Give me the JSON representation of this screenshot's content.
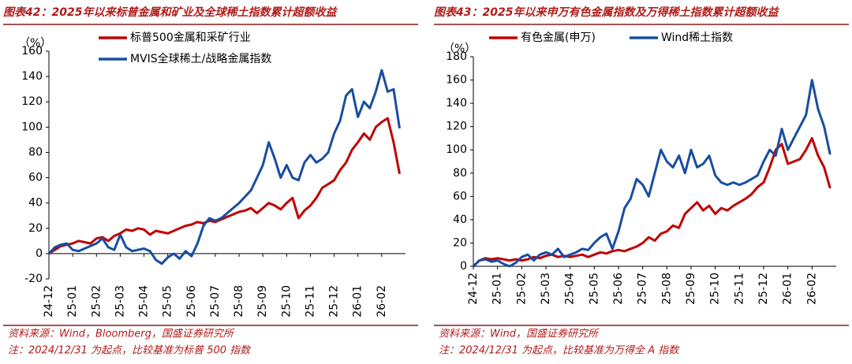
{
  "chart_data": [
    {
      "type": "line",
      "title": "图表42：2025年以来标普金属和矿业及全球稀土指数累计超额收益",
      "y_label": "（%）",
      "source": "资料来源：Wind，Bloomberg，国盛证券研究所",
      "note": "注：2024/12/31 为起点，比较基准为标普 500 指数",
      "categories": [
        "24-12",
        null,
        null,
        null,
        "25-01",
        null,
        null,
        null,
        "25-02",
        null,
        null,
        null,
        "25-03",
        null,
        null,
        null,
        "25-04",
        null,
        null,
        null,
        "25-05",
        null,
        null,
        null,
        "25-06",
        null,
        null,
        null,
        "25-07",
        null,
        null,
        null,
        "25-08",
        null,
        null,
        null,
        "25-09",
        null,
        null,
        null,
        "25-10",
        null,
        null,
        null,
        "25-11",
        null,
        null,
        null,
        "25-12",
        null,
        null,
        null,
        "26-01",
        null,
        null,
        null,
        "26-02",
        null,
        null,
        null
      ],
      "ylim": [
        -20,
        160
      ],
      "yticks": [
        -20,
        0,
        20,
        40,
        60,
        80,
        100,
        120,
        140,
        160
      ],
      "series": [
        {
          "name": "标普500金属和采矿行业",
          "color": "#c00000",
          "values": [
            0,
            3,
            6,
            7,
            8,
            10,
            9,
            8,
            12,
            13,
            10,
            14,
            16,
            19,
            18,
            20,
            19,
            15,
            18,
            17,
            16,
            18,
            20,
            22,
            23,
            25,
            24,
            26,
            25,
            27,
            29,
            31,
            33,
            34,
            36,
            32,
            36,
            40,
            38,
            35,
            40,
            44,
            28,
            34,
            38,
            44,
            52,
            55,
            58,
            66,
            72,
            82,
            88,
            95,
            90,
            100,
            104,
            107,
            88,
            63
          ]
        },
        {
          "name": "MVIS全球稀土/战略金属指数",
          "color": "#1a4da1",
          "values": [
            0,
            5,
            7,
            8,
            3,
            2,
            4,
            6,
            8,
            12,
            5,
            3,
            15,
            5,
            2,
            3,
            4,
            2,
            -5,
            -8,
            -3,
            0,
            -4,
            2,
            -2,
            8,
            22,
            28,
            26,
            28,
            32,
            36,
            40,
            45,
            50,
            60,
            70,
            88,
            75,
            60,
            70,
            60,
            58,
            72,
            78,
            72,
            75,
            80,
            95,
            105,
            125,
            130,
            108,
            120,
            115,
            128,
            145,
            128,
            130,
            99
          ]
        }
      ]
    },
    {
      "type": "line",
      "title": "图表43：2025年以来申万有色金属指数及万得稀土指数累计超额收益",
      "y_label": "（%）",
      "source": "资料来源：Wind，国盛证券研究所",
      "note": "注：2024/12/31 为起点，比较基准为万得全 A 指数",
      "categories": [
        "24-12",
        null,
        null,
        null,
        "25-01",
        null,
        null,
        null,
        "25-02",
        null,
        null,
        null,
        "25-03",
        null,
        null,
        null,
        "25-04",
        null,
        null,
        null,
        "25-05",
        null,
        null,
        null,
        "25-06",
        null,
        null,
        null,
        "25-07",
        null,
        null,
        null,
        "25-08",
        null,
        null,
        null,
        "25-09",
        null,
        null,
        null,
        "25-10",
        null,
        null,
        null,
        "25-11",
        null,
        null,
        null,
        "25-12",
        null,
        null,
        null,
        "26-01",
        null,
        null,
        null,
        "26-02",
        null,
        null,
        null
      ],
      "ylim": [
        0,
        180
      ],
      "yticks": [
        0,
        20,
        40,
        60,
        80,
        100,
        120,
        140,
        160,
        180
      ],
      "series": [
        {
          "name": "有色金属(申万)",
          "color": "#c00000",
          "values": [
            0,
            5,
            7,
            6,
            7,
            6,
            5,
            6,
            5,
            6,
            8,
            7,
            9,
            10,
            8,
            9,
            8,
            9,
            10,
            8,
            10,
            12,
            11,
            13,
            14,
            13,
            15,
            17,
            20,
            25,
            22,
            28,
            30,
            35,
            33,
            45,
            50,
            55,
            48,
            52,
            45,
            50,
            48,
            52,
            55,
            58,
            62,
            68,
            72,
            85,
            100,
            105,
            88,
            90,
            92,
            100,
            110,
            95,
            85,
            67
          ]
        },
        {
          "name": "Wind稀土指数",
          "color": "#1a4da1",
          "values": [
            0,
            5,
            6,
            4,
            5,
            2,
            0,
            3,
            8,
            10,
            5,
            10,
            12,
            10,
            15,
            8,
            10,
            12,
            15,
            14,
            20,
            25,
            28,
            15,
            30,
            50,
            58,
            75,
            70,
            60,
            80,
            100,
            90,
            85,
            95,
            80,
            100,
            85,
            88,
            95,
            78,
            72,
            70,
            72,
            70,
            72,
            75,
            78,
            90,
            100,
            95,
            118,
            100,
            110,
            120,
            130,
            160,
            135,
            120,
            96
          ]
        }
      ]
    }
  ]
}
